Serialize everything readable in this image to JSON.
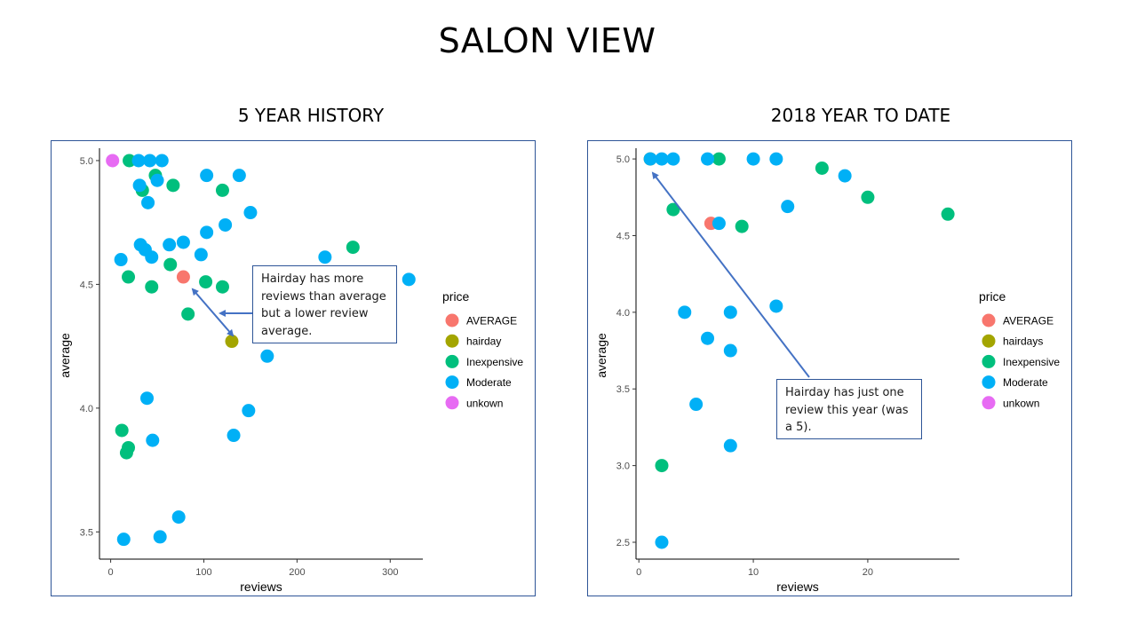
{
  "slide": {
    "title": "SALON VIEW"
  },
  "colors": {
    "AVERAGE": "#F8766D",
    "hairday": "#A3A500",
    "Inexpensive": "#00BF7D",
    "Moderate": "#00B0F6",
    "unkown": "#E76BF3",
    "annotation": "#4472C4"
  },
  "chart_data": [
    {
      "type": "scatter",
      "title": "5 YEAR HISTORY",
      "xlabel": "reviews",
      "ylabel": "average",
      "xlim": [
        -12,
        335
      ],
      "ylim": [
        3.39,
        5.05
      ],
      "xticks": [
        0,
        100,
        200,
        300
      ],
      "yticks": [
        3.5,
        4.0,
        4.5,
        5.0
      ],
      "xtick_labels": [
        "0",
        "100",
        "200",
        "300"
      ],
      "ytick_labels": [
        "3.5",
        "4.0",
        "4.5",
        "5.0"
      ],
      "grid": false,
      "legend": {
        "title": "price",
        "position": "right",
        "entries": [
          "AVERAGE",
          "hairday",
          "Inexpensive",
          "Moderate",
          "unkown"
        ]
      },
      "annotation": "Hairday has more\nreviews than average\n  but a lower review\naverage.",
      "series": [
        {
          "name": "AVERAGE",
          "points": [
            [
              78,
              4.53
            ]
          ]
        },
        {
          "name": "hairday",
          "points": [
            [
              130,
              4.27
            ]
          ]
        },
        {
          "name": "Inexpensive",
          "points": [
            [
              20,
              5.0
            ],
            [
              34,
              4.88
            ],
            [
              48,
              4.94
            ],
            [
              67,
              4.9
            ],
            [
              120,
              4.88
            ],
            [
              260,
              4.65
            ],
            [
              64,
              4.58
            ],
            [
              19,
              4.53
            ],
            [
              44,
              4.49
            ],
            [
              102,
              4.51
            ],
            [
              120,
              4.49
            ],
            [
              83,
              4.38
            ],
            [
              12,
              3.91
            ],
            [
              19,
              3.84
            ],
            [
              17,
              3.82
            ]
          ]
        },
        {
          "name": "Moderate",
          "points": [
            [
              30,
              5.0
            ],
            [
              42,
              5.0
            ],
            [
              55,
              5.0
            ],
            [
              103,
              4.94
            ],
            [
              138,
              4.94
            ],
            [
              31,
              4.9
            ],
            [
              50,
              4.92
            ],
            [
              40,
              4.83
            ],
            [
              150,
              4.79
            ],
            [
              123,
              4.74
            ],
            [
              103,
              4.71
            ],
            [
              32,
              4.66
            ],
            [
              37,
              4.64
            ],
            [
              63,
              4.66
            ],
            [
              78,
              4.67
            ],
            [
              11,
              4.6
            ],
            [
              44,
              4.61
            ],
            [
              97,
              4.62
            ],
            [
              230,
              4.61
            ],
            [
              320,
              4.52
            ],
            [
              168,
              4.21
            ],
            [
              39,
              4.04
            ],
            [
              148,
              3.99
            ],
            [
              132,
              3.89
            ],
            [
              45,
              3.87
            ],
            [
              73,
              3.56
            ],
            [
              53,
              3.48
            ],
            [
              14,
              3.47
            ]
          ]
        },
        {
          "name": "unkown",
          "points": [
            [
              2,
              5.0
            ]
          ]
        }
      ]
    },
    {
      "type": "scatter",
      "title": "2018 YEAR TO DATE",
      "xlabel": "reviews",
      "ylabel": "average",
      "xlim": [
        -0.25,
        28
      ],
      "ylim": [
        2.39,
        5.07
      ],
      "xticks": [
        0,
        10,
        20
      ],
      "yticks": [
        2.5,
        3.0,
        3.5,
        4.0,
        4.5,
        5.0
      ],
      "xtick_labels": [
        "0",
        "10",
        "20"
      ],
      "ytick_labels": [
        "2.5",
        "3.0",
        "3.5",
        "4.0",
        "4.5",
        "5.0"
      ],
      "grid": false,
      "legend": {
        "title": "price",
        "position": "right",
        "entries": [
          "AVERAGE",
          "hairdays",
          "Inexpensive",
          "Moderate",
          "unkown"
        ]
      },
      "annotation": "Hairday has just one\nreview this year (was\na 5).",
      "series": [
        {
          "name": "AVERAGE",
          "points": [
            [
              6.3,
              4.58
            ]
          ]
        },
        {
          "name": "hairdays",
          "points": [
            [
              1,
              5.0
            ]
          ]
        },
        {
          "name": "Inexpensive",
          "points": [
            [
              7,
              5.0
            ],
            [
              16,
              4.94
            ],
            [
              20,
              4.75
            ],
            [
              27,
              4.64
            ],
            [
              3,
              4.67
            ],
            [
              9,
              4.56
            ],
            [
              2,
              3.0
            ]
          ]
        },
        {
          "name": "Moderate",
          "points": [
            [
              1,
              5.0
            ],
            [
              2,
              5.0
            ],
            [
              3,
              5.0
            ],
            [
              6,
              5.0
            ],
            [
              10,
              5.0
            ],
            [
              12,
              5.0
            ],
            [
              18,
              4.89
            ],
            [
              13,
              4.69
            ],
            [
              7,
              4.58
            ],
            [
              4,
              4.0
            ],
            [
              8,
              4.0
            ],
            [
              12,
              4.04
            ],
            [
              6,
              3.83
            ],
            [
              8,
              3.75
            ],
            [
              5,
              3.4
            ],
            [
              8,
              3.13
            ],
            [
              2,
              2.5
            ]
          ]
        }
      ]
    }
  ]
}
